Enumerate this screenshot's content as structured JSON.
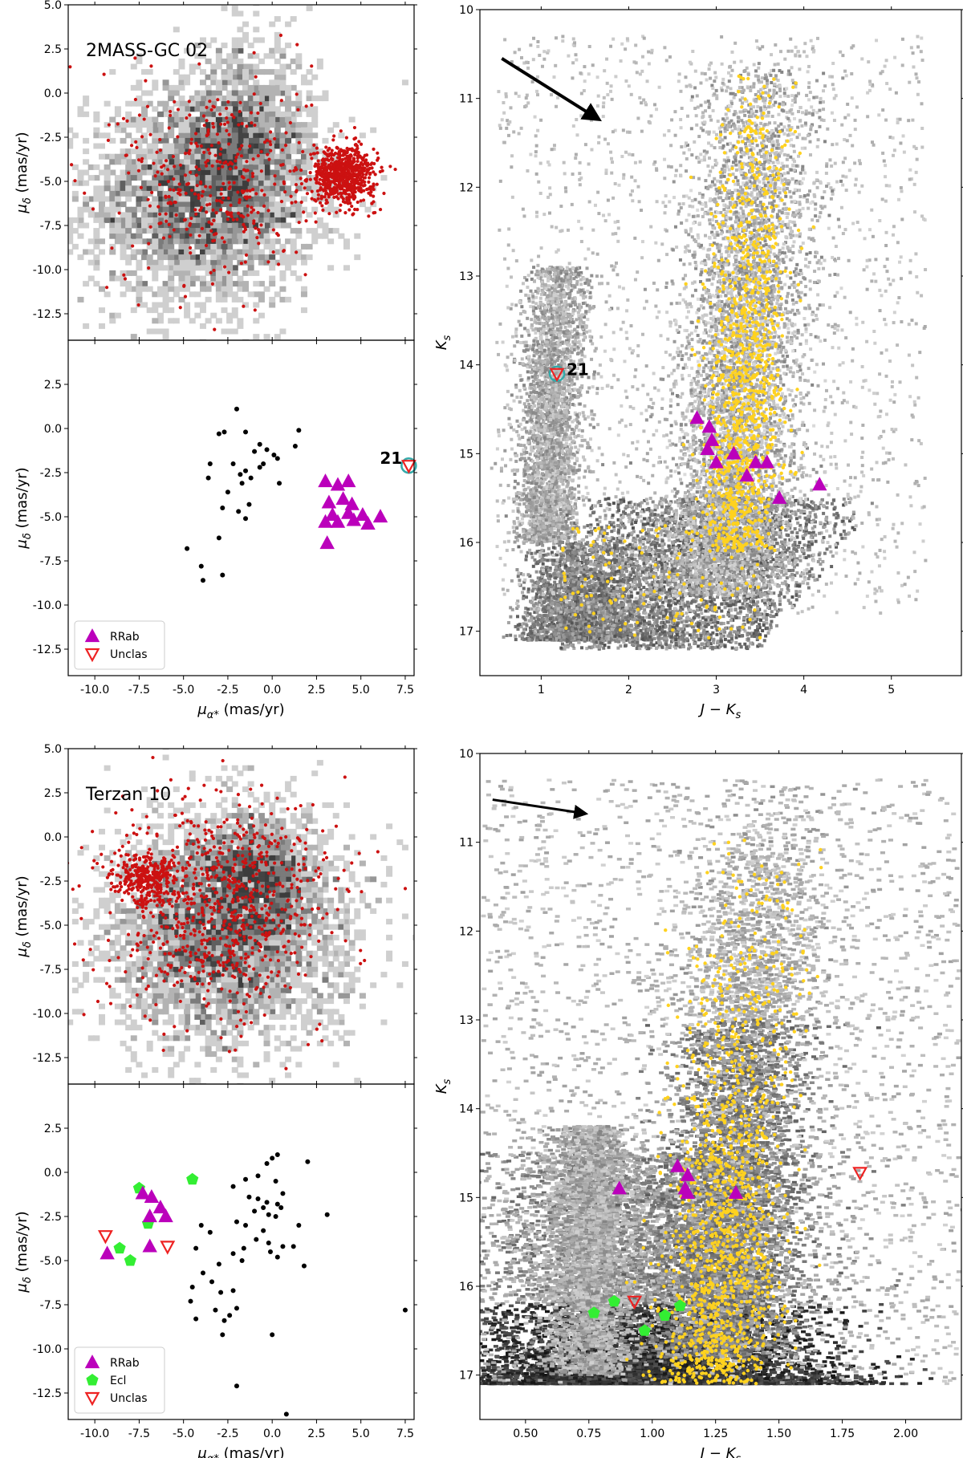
{
  "figure": {
    "colors": {
      "hex_field": "#555555",
      "cluster_pm": "#cc1111",
      "cluster_cmd": "#ffd21f",
      "rrab": "#bb00bb",
      "ecl": "#33ee33",
      "unclas": "#ee2222",
      "highlight": "#33aaaa",
      "field_points": "#000000"
    }
  },
  "chart_data": [
    {
      "id": "gc02_pm_upper",
      "type": "scatter",
      "title": "2MASS-GC 02",
      "xlabel": "",
      "ylabel": "μδ (mas/yr)",
      "xlim": [
        -11.5,
        8.0
      ],
      "ylim": [
        -14.0,
        5.0
      ],
      "xticks": [
        -10.0,
        -7.5,
        -5.0,
        -2.5,
        0.0,
        2.5,
        5.0,
        7.5
      ],
      "yticks": [
        -12.5,
        -10.0,
        -7.5,
        -5.0,
        -2.5,
        0.0,
        2.5,
        5.0
      ],
      "yticklabels": [
        "-12.5",
        "-10.0",
        "-7.5",
        "-5.0",
        "-2.5",
        "0.0",
        "2.5",
        "5.0"
      ],
      "series": [
        {
          "name": "field",
          "kind": "hexbin",
          "components": [
            {
              "cx": -4.0,
              "cy": -6.0,
              "sx": 3.2,
              "sy": 3.0,
              "n": 2800
            },
            {
              "cx": -1.5,
              "cy": -2.5,
              "sx": 2.0,
              "sy": 2.6,
              "n": 1100
            }
          ]
        },
        {
          "name": "cluster members",
          "kind": "points",
          "components": [
            {
              "cx": 4.0,
              "cy": -4.6,
              "sx": 0.9,
              "sy": 0.8,
              "n": 700
            },
            {
              "cx": -3.0,
              "cy": -5.0,
              "sx": 2.6,
              "sy": 3.0,
              "n": 380
            }
          ]
        }
      ]
    },
    {
      "id": "gc02_pm_lower",
      "type": "scatter",
      "xlabel": "μα* (mas/yr)",
      "ylabel": "μδ (mas/yr)",
      "xlim": [
        -11.5,
        8.0
      ],
      "ylim": [
        -14.0,
        5.0
      ],
      "xticks": [
        -10.0,
        -7.5,
        -5.0,
        -2.5,
        0.0,
        2.5,
        5.0,
        7.5
      ],
      "xticklabels": [
        "-10.0",
        "-7.5",
        "-5.0",
        "-2.5",
        "0.0",
        "2.5",
        "5.0",
        "7.5"
      ],
      "yticks": [
        -12.5,
        -10.0,
        -7.5,
        -5.0,
        -2.5,
        0.0,
        2.5
      ],
      "yticklabels": [
        "-12.5",
        "-10.0",
        "-7.5",
        "-5.0",
        "-2.5",
        "0.0",
        "2.5"
      ],
      "legend": [
        "RRab",
        "Unclas"
      ],
      "annotation": {
        "text": "21",
        "x": 7.7,
        "y": -2.1
      },
      "field_points": [
        [
          -2.0,
          1.1
        ],
        [
          -3.0,
          -0.3
        ],
        [
          -2.7,
          -0.2
        ],
        [
          -1.5,
          -0.2
        ],
        [
          -0.7,
          -0.9
        ],
        [
          -0.3,
          -1.2
        ],
        [
          0.1,
          -1.5
        ],
        [
          -0.5,
          -2.0
        ],
        [
          1.5,
          -0.1
        ],
        [
          1.3,
          -1.0
        ],
        [
          0.3,
          -1.7
        ],
        [
          -3.5,
          -2.0
        ],
        [
          -2.2,
          -2.0
        ],
        [
          -1.5,
          -2.4
        ],
        [
          -1.0,
          -1.3
        ],
        [
          -1.2,
          -2.8
        ],
        [
          -1.8,
          -2.6
        ],
        [
          -3.6,
          -2.8
        ],
        [
          -1.7,
          -3.1
        ],
        [
          -0.7,
          -2.2
        ],
        [
          0.4,
          -3.1
        ],
        [
          -2.5,
          -3.6
        ],
        [
          -2.8,
          -4.5
        ],
        [
          -1.3,
          -4.3
        ],
        [
          -1.9,
          -4.7
        ],
        [
          -1.5,
          -5.1
        ],
        [
          -3.0,
          -6.2
        ],
        [
          -4.8,
          -6.8
        ],
        [
          -4.0,
          -7.8
        ],
        [
          -3.9,
          -8.6
        ],
        [
          -2.8,
          -8.3
        ]
      ],
      "rrab": [
        [
          3.0,
          -3.0
        ],
        [
          3.7,
          -3.2
        ],
        [
          4.3,
          -3.0
        ],
        [
          3.2,
          -4.2
        ],
        [
          4.0,
          -4.0
        ],
        [
          4.5,
          -4.3
        ],
        [
          3.4,
          -4.9
        ],
        [
          3.7,
          -5.3
        ],
        [
          4.3,
          -4.8
        ],
        [
          5.1,
          -4.9
        ],
        [
          4.6,
          -5.2
        ],
        [
          5.4,
          -5.4
        ],
        [
          3.0,
          -5.3
        ],
        [
          6.1,
          -5.0
        ],
        [
          3.1,
          -6.5
        ]
      ],
      "unclas": [
        [
          7.7,
          -2.1
        ]
      ],
      "highlight": [
        [
          7.7,
          -2.1
        ]
      ]
    },
    {
      "id": "gc02_cmd",
      "type": "scatter",
      "xlabel": "J − Ks",
      "ylabel": "Ks",
      "xlim": [
        0.3,
        5.8
      ],
      "ylim": [
        17.5,
        10.0
      ],
      "xticks": [
        1,
        2,
        3,
        4,
        5
      ],
      "xticklabels": [
        "1",
        "2",
        "3",
        "4",
        "5"
      ],
      "yticks": [
        10,
        11,
        12,
        13,
        14,
        15,
        16,
        17
      ],
      "yticklabels": [
        "10",
        "11",
        "12",
        "13",
        "14",
        "15",
        "16",
        "17"
      ],
      "arrow": {
        "from": [
          0.55,
          10.55
        ],
        "to": [
          1.6,
          11.2
        ]
      },
      "annotation": {
        "text": "21",
        "x": 1.18,
        "y": 14.1
      },
      "rrab": [
        [
          2.78,
          14.6
        ],
        [
          2.92,
          14.7
        ],
        [
          2.95,
          14.85
        ],
        [
          2.9,
          14.95
        ],
        [
          3.0,
          15.1
        ],
        [
          3.2,
          15.0
        ],
        [
          3.35,
          15.25
        ],
        [
          3.45,
          15.1
        ],
        [
          3.58,
          15.1
        ],
        [
          3.72,
          15.5
        ],
        [
          4.18,
          15.35
        ]
      ],
      "unclas": [
        [
          1.18,
          14.1
        ]
      ],
      "highlight": [
        [
          1.18,
          14.1
        ]
      ]
    },
    {
      "id": "ter10_pm_upper",
      "type": "scatter",
      "title": "Terzan 10",
      "xlabel": "",
      "ylabel": "μδ (mas/yr)",
      "xlim": [
        -11.5,
        8.0
      ],
      "ylim": [
        -14.0,
        5.0
      ],
      "xticks": [
        -10.0,
        -7.5,
        -5.0,
        -2.5,
        0.0,
        2.5,
        5.0,
        7.5
      ],
      "yticks": [
        -12.5,
        -10.0,
        -7.5,
        -5.0,
        -2.5,
        0.0,
        2.5,
        5.0
      ],
      "yticklabels": [
        "-12.5",
        "-10.0",
        "-7.5",
        "-5.0",
        "-2.5",
        "0.0",
        "2.5",
        "5.0"
      ],
      "series": [
        {
          "name": "field",
          "kind": "hexbin",
          "components": [
            {
              "cx": -2.8,
              "cy": -5.5,
              "sx": 3.4,
              "sy": 3.2,
              "n": 3200
            },
            {
              "cx": -1.0,
              "cy": -2.0,
              "sx": 2.0,
              "sy": 1.8,
              "n": 900
            }
          ]
        },
        {
          "name": "cluster members",
          "kind": "points",
          "components": [
            {
              "cx": -7.0,
              "cy": -2.3,
              "sx": 0.8,
              "sy": 0.7,
              "n": 300
            },
            {
              "cx": -3.0,
              "cy": -4.0,
              "sx": 3.3,
              "sy": 3.0,
              "n": 780
            }
          ]
        }
      ]
    },
    {
      "id": "ter10_pm_lower",
      "type": "scatter",
      "xlabel": "μα* (mas/yr)",
      "ylabel": "μδ (mas/yr)",
      "xlim": [
        -11.5,
        8.0
      ],
      "ylim": [
        -14.0,
        5.0
      ],
      "xticks": [
        -10.0,
        -7.5,
        -5.0,
        -2.5,
        0.0,
        2.5,
        5.0,
        7.5
      ],
      "xticklabels": [
        "-10.0",
        "-7.5",
        "-5.0",
        "-2.5",
        "0.0",
        "2.5",
        "5.0",
        "7.5"
      ],
      "yticks": [
        -12.5,
        -10.0,
        -7.5,
        -5.0,
        -2.5,
        0.0,
        2.5
      ],
      "yticklabels": [
        "-12.5",
        "-10.0",
        "-7.5",
        "-5.0",
        "-2.5",
        "0.0",
        "2.5"
      ],
      "legend": [
        "RRab",
        "Ecl",
        "Unclas"
      ],
      "field_points": [
        [
          0.3,
          1.0
        ],
        [
          0.0,
          0.8
        ],
        [
          -0.3,
          0.5
        ],
        [
          2.0,
          0.6
        ],
        [
          -0.8,
          -0.2
        ],
        [
          -1.5,
          -0.4
        ],
        [
          0.2,
          -0.5
        ],
        [
          -2.2,
          -0.8
        ],
        [
          0.6,
          -1.2
        ],
        [
          -1.3,
          -1.4
        ],
        [
          -0.8,
          -1.5
        ],
        [
          -0.3,
          -1.7
        ],
        [
          0.3,
          -1.8
        ],
        [
          0.5,
          -2.0
        ],
        [
          -0.5,
          -2.0
        ],
        [
          -0.2,
          -2.4
        ],
        [
          -1.0,
          -2.2
        ],
        [
          3.1,
          -2.4
        ],
        [
          0.2,
          -2.5
        ],
        [
          -1.5,
          -3.0
        ],
        [
          -2.0,
          -2.8
        ],
        [
          -0.5,
          -3.3
        ],
        [
          1.5,
          -3.0
        ],
        [
          -3.5,
          -3.4
        ],
        [
          -4.0,
          -3.0
        ],
        [
          -0.9,
          -3.8
        ],
        [
          -0.2,
          -4.0
        ],
        [
          0.6,
          -4.2
        ],
        [
          1.2,
          -4.2
        ],
        [
          -1.6,
          -4.3
        ],
        [
          -0.1,
          -4.5
        ],
        [
          0.3,
          -4.8
        ],
        [
          -4.3,
          -4.3
        ],
        [
          -2.2,
          -4.6
        ],
        [
          -1.7,
          -5.0
        ],
        [
          -3.0,
          -5.2
        ],
        [
          -3.9,
          -5.7
        ],
        [
          1.8,
          -5.3
        ],
        [
          -4.5,
          -6.5
        ],
        [
          -2.9,
          -6.8
        ],
        [
          -3.4,
          -6.2
        ],
        [
          -2.2,
          -6.7
        ],
        [
          -4.6,
          -7.3
        ],
        [
          -3.2,
          -7.8
        ],
        [
          -2.4,
          -8.1
        ],
        [
          -2.0,
          -7.7
        ],
        [
          -2.7,
          -8.4
        ],
        [
          -4.3,
          -8.3
        ],
        [
          -2.8,
          -9.2
        ],
        [
          0.0,
          -9.2
        ],
        [
          -2.0,
          -12.1
        ],
        [
          0.8,
          -13.7
        ],
        [
          7.5,
          -7.8
        ]
      ],
      "rrab": [
        [
          -7.3,
          -1.2
        ],
        [
          -6.8,
          -1.4
        ],
        [
          -6.3,
          -2.0
        ],
        [
          -6.9,
          -2.5
        ],
        [
          -6.0,
          -2.5
        ],
        [
          -6.9,
          -4.2
        ],
        [
          -9.3,
          -4.6
        ]
      ],
      "ecl": [
        [
          -7.5,
          -0.9
        ],
        [
          -4.5,
          -0.4
        ],
        [
          -7.0,
          -2.9
        ],
        [
          -8.6,
          -4.3
        ],
        [
          -8.0,
          -5.0
        ]
      ],
      "unclas": [
        [
          -9.4,
          -3.6
        ],
        [
          -5.9,
          -4.2
        ]
      ]
    },
    {
      "id": "ter10_cmd",
      "type": "scatter",
      "xlabel": "J − Ks",
      "ylabel": "Ks",
      "xlim": [
        0.32,
        2.22
      ],
      "ylim": [
        17.5,
        10.0
      ],
      "xticks": [
        0.5,
        0.75,
        1.0,
        1.25,
        1.5,
        1.75,
        2.0
      ],
      "xticklabels": [
        "0.50",
        "0.75",
        "1.00",
        "1.25",
        "1.50",
        "1.75",
        "2.00"
      ],
      "yticks": [
        10,
        11,
        12,
        13,
        14,
        15,
        16,
        17
      ],
      "yticklabels": [
        "10",
        "11",
        "12",
        "13",
        "14",
        "15",
        "16",
        "17"
      ],
      "arrow": {
        "from": [
          0.37,
          10.52
        ],
        "to": [
          0.72,
          10.67
        ]
      },
      "rrab": [
        [
          0.87,
          14.9
        ],
        [
          1.1,
          14.65
        ],
        [
          1.14,
          14.75
        ],
        [
          1.13,
          14.9
        ],
        [
          1.14,
          14.95
        ],
        [
          1.33,
          14.95
        ]
      ],
      "ecl": [
        [
          0.77,
          16.3
        ],
        [
          0.85,
          16.17
        ],
        [
          0.97,
          16.5
        ],
        [
          1.05,
          16.33
        ],
        [
          1.11,
          16.22
        ]
      ],
      "unclas": [
        [
          0.93,
          16.17
        ],
        [
          1.82,
          14.72
        ]
      ]
    }
  ]
}
